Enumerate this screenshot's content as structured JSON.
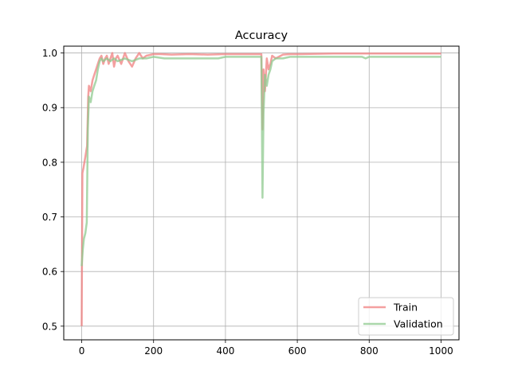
{
  "chart_data": {
    "type": "line",
    "title": "Accuracy",
    "xlabel": "",
    "ylabel": "",
    "xlim": [
      -50,
      1050
    ],
    "ylim": [
      0.475,
      1.0125
    ],
    "xticks": [
      0,
      200,
      400,
      600,
      800,
      1000
    ],
    "yticks": [
      0.5,
      0.6,
      0.7,
      0.8,
      0.9,
      1.0
    ],
    "xtick_labels": [
      "0",
      "200",
      "400",
      "600",
      "800",
      "1000"
    ],
    "ytick_labels": [
      "0.5",
      "0.6",
      "0.7",
      "0.8",
      "0.9",
      "1.0"
    ],
    "grid": true,
    "legend_position": "bottom-right",
    "series": [
      {
        "name": "Train",
        "color": "#f08080",
        "points": [
          [
            0,
            0.5
          ],
          [
            2,
            0.78
          ],
          [
            5,
            0.79
          ],
          [
            10,
            0.81
          ],
          [
            15,
            0.83
          ],
          [
            18,
            0.92
          ],
          [
            20,
            0.94
          ],
          [
            25,
            0.93
          ],
          [
            30,
            0.95
          ],
          [
            35,
            0.96
          ],
          [
            40,
            0.97
          ],
          [
            45,
            0.98
          ],
          [
            50,
            0.99
          ],
          [
            55,
            0.995
          ],
          [
            60,
            0.98
          ],
          [
            65,
            0.99
          ],
          [
            70,
            0.995
          ],
          [
            75,
            0.98
          ],
          [
            80,
            0.99
          ],
          [
            85,
            1.0
          ],
          [
            90,
            0.975
          ],
          [
            95,
            0.99
          ],
          [
            100,
            0.995
          ],
          [
            110,
            0.98
          ],
          [
            120,
            1.0
          ],
          [
            130,
            0.985
          ],
          [
            140,
            0.975
          ],
          [
            150,
            0.99
          ],
          [
            160,
            1.0
          ],
          [
            170,
            0.99
          ],
          [
            180,
            0.995
          ],
          [
            200,
            0.998
          ],
          [
            220,
            0.998
          ],
          [
            250,
            0.997
          ],
          [
            300,
            0.998
          ],
          [
            350,
            0.997
          ],
          [
            400,
            0.998
          ],
          [
            450,
            0.998
          ],
          [
            500,
            0.998
          ],
          [
            503,
            0.86
          ],
          [
            506,
            0.97
          ],
          [
            510,
            0.93
          ],
          [
            515,
            0.99
          ],
          [
            520,
            0.97
          ],
          [
            525,
            0.98
          ],
          [
            530,
            0.995
          ],
          [
            540,
            0.99
          ],
          [
            560,
            0.997
          ],
          [
            580,
            0.998
          ],
          [
            600,
            0.998
          ],
          [
            700,
            0.999
          ],
          [
            790,
            0.999
          ],
          [
            800,
            0.999
          ],
          [
            900,
            0.999
          ],
          [
            1000,
            0.999
          ]
        ]
      },
      {
        "name": "Validation",
        "color": "#8fc98f",
        "points": [
          [
            0,
            0.61
          ],
          [
            3,
            0.64
          ],
          [
            6,
            0.66
          ],
          [
            10,
            0.67
          ],
          [
            14,
            0.69
          ],
          [
            17,
            0.86
          ],
          [
            20,
            0.92
          ],
          [
            25,
            0.91
          ],
          [
            30,
            0.93
          ],
          [
            35,
            0.94
          ],
          [
            40,
            0.95
          ],
          [
            45,
            0.97
          ],
          [
            50,
            0.985
          ],
          [
            55,
            0.99
          ],
          [
            60,
            0.985
          ],
          [
            70,
            0.99
          ],
          [
            80,
            0.985
          ],
          [
            90,
            0.99
          ],
          [
            100,
            0.985
          ],
          [
            120,
            0.99
          ],
          [
            140,
            0.985
          ],
          [
            160,
            0.99
          ],
          [
            180,
            0.99
          ],
          [
            200,
            0.993
          ],
          [
            230,
            0.99
          ],
          [
            260,
            0.99
          ],
          [
            300,
            0.99
          ],
          [
            350,
            0.99
          ],
          [
            380,
            0.99
          ],
          [
            400,
            0.993
          ],
          [
            450,
            0.993
          ],
          [
            500,
            0.993
          ],
          [
            503,
            0.735
          ],
          [
            506,
            0.89
          ],
          [
            510,
            0.96
          ],
          [
            515,
            0.94
          ],
          [
            520,
            0.96
          ],
          [
            525,
            0.97
          ],
          [
            530,
            0.985
          ],
          [
            540,
            0.99
          ],
          [
            560,
            0.99
          ],
          [
            580,
            0.993
          ],
          [
            600,
            0.993
          ],
          [
            700,
            0.993
          ],
          [
            780,
            0.993
          ],
          [
            790,
            0.99
          ],
          [
            800,
            0.993
          ],
          [
            900,
            0.993
          ],
          [
            1000,
            0.993
          ]
        ]
      }
    ]
  }
}
